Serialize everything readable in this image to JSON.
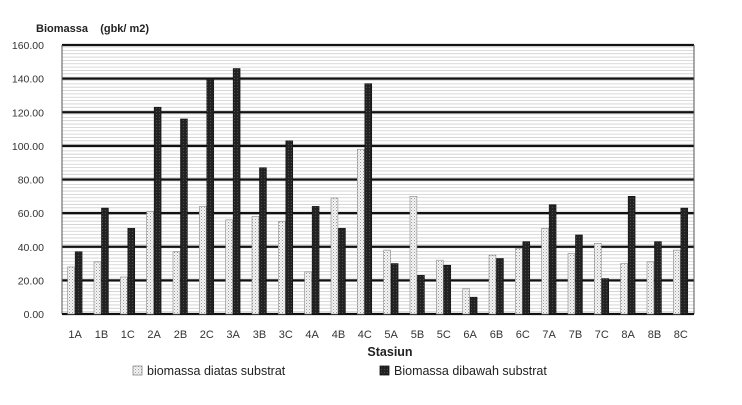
{
  "chart_data": {
    "type": "bar",
    "ylabel": "Biomassa    (gbk/ m2)",
    "xlabel": "Stasiun",
    "ylim": [
      0,
      160
    ],
    "ytick_step": 20,
    "ytick_labels": [
      "0.00",
      "20.00",
      "40.00",
      "60.00",
      "80.00",
      "100.00",
      "120.00",
      "140.00",
      "160.00"
    ],
    "grid": true,
    "legend_position": "bottom",
    "categories": [
      "1A",
      "1B",
      "1C",
      "2A",
      "2B",
      "2C",
      "3A",
      "3B",
      "3C",
      "4A",
      "4B",
      "4C",
      "5A",
      "5B",
      "5C",
      "6A",
      "6B",
      "6C",
      "7A",
      "7B",
      "7C",
      "8A",
      "8B",
      "8C"
    ],
    "series": [
      {
        "name": "biomassa diatas substrat",
        "color": "#f2f2f2",
        "pattern": "light-dotted",
        "values": [
          28,
          31,
          22,
          61,
          37,
          64,
          56,
          58,
          55,
          25,
          69,
          98,
          38,
          70,
          32,
          15,
          35,
          39,
          51,
          36,
          42,
          30,
          31,
          38
        ]
      },
      {
        "name": "Biomassa dibawah substrat",
        "color": "#1f1f1f",
        "pattern": "dark",
        "values": [
          37,
          63,
          51,
          123,
          116,
          140,
          146,
          87,
          103,
          64,
          51,
          137,
          30,
          23,
          29,
          10,
          33,
          43,
          65,
          47,
          21,
          70,
          43,
          63
        ]
      }
    ]
  }
}
